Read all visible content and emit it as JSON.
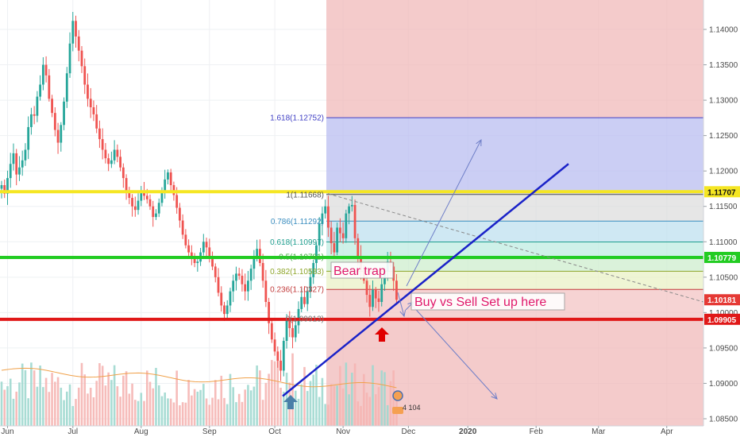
{
  "chart_data": {
    "type": "candlestick",
    "y_axis": {
      "range": [
        1.085,
        1.145
      ],
      "ticks": [
        "1.14000",
        "1.13500",
        "1.13000",
        "1.12500",
        "1.12000",
        "1.11500",
        "1.11000",
        "1.10500",
        "1.10000",
        "1.09500",
        "1.09000",
        "1.08500"
      ],
      "tick_values": [
        1.14,
        1.135,
        1.13,
        1.125,
        1.12,
        1.115,
        1.11,
        1.105,
        1.1,
        1.095,
        1.09,
        1.085
      ]
    },
    "x_axis": {
      "labels": [
        "Jun",
        "Jul",
        "Aug",
        "Sep",
        "Oct",
        "Nov",
        "Dec",
        "2020",
        "Feb",
        "Mar",
        "Apr"
      ],
      "label_bar_index": [
        2,
        24,
        47,
        70,
        92,
        115,
        137,
        157,
        180,
        201,
        224
      ]
    },
    "bars_count": 134,
    "closes": [
      1.118,
      1.1168,
      1.119,
      1.121,
      1.1225,
      1.1195,
      1.1205,
      1.1215,
      1.123,
      1.1262,
      1.128,
      1.1278,
      1.1305,
      1.1322,
      1.135,
      1.1335,
      1.1302,
      1.1282,
      1.1258,
      1.124,
      1.1265,
      1.1298,
      1.1338,
      1.138,
      1.1412,
      1.139,
      1.137,
      1.1348,
      1.1322,
      1.1302,
      1.129,
      1.128,
      1.126,
      1.1245,
      1.123,
      1.1218,
      1.121,
      1.1215,
      1.123,
      1.122,
      1.1205,
      1.119,
      1.117,
      1.1162,
      1.115,
      1.1145,
      1.1158,
      1.117,
      1.1165,
      1.116,
      1.115,
      1.1135,
      1.114,
      1.1155,
      1.1172,
      1.1188,
      1.1198,
      1.118,
      1.1166,
      1.1148,
      1.113,
      1.111,
      1.1095,
      1.1085,
      1.1078,
      1.107,
      1.1072,
      1.1085,
      1.11,
      1.1092,
      1.108,
      1.1065,
      1.105,
      1.1028,
      1.101,
      1.0998,
      1.101,
      1.103,
      1.1045,
      1.1055,
      1.1052,
      1.104,
      1.103,
      1.1045,
      1.1062,
      1.1078,
      1.109,
      1.107,
      1.1045,
      1.1015,
      1.0985,
      1.0962,
      1.0945,
      1.0932,
      1.0918,
      1.096,
      1.0992,
      1.0978,
      1.0965,
      1.0982,
      1.1005,
      1.1022,
      1.1012,
      1.103,
      1.105,
      1.107,
      1.1095,
      1.1125,
      1.114,
      1.115,
      1.112,
      1.1098,
      1.1085,
      1.112,
      1.1112,
      1.1105,
      1.114,
      1.115,
      1.1152,
      1.1105,
      1.108,
      1.106,
      1.1045,
      1.1025,
      1.1008,
      1.1032,
      1.102,
      1.1015,
      1.104,
      1.1058,
      1.1072,
      1.1065,
      1.1045,
      1.1018
    ],
    "volume_note": "volume histogram at bottom with orange moving average line",
    "levels": [
      {
        "name": "resistance",
        "value": 1.11707,
        "label": "1.11707",
        "color": "#f5e623"
      },
      {
        "name": "mid",
        "value": 1.10779,
        "label": "1.10779",
        "color": "#22cc22"
      },
      {
        "name": "support",
        "value": 1.09905,
        "label": "1.09905",
        "color": "#e01818"
      },
      {
        "name": "last",
        "value": 1.10181,
        "label": "1.10181",
        "color": "#e53935"
      }
    ],
    "fib_levels": [
      {
        "ratio": "1.618",
        "label": "1.618(1.12752)",
        "value": 1.12752,
        "color": "#3f3fc4"
      },
      {
        "ratio": "1",
        "label": "1(1.11668)",
        "value": 1.11668,
        "color": "#555555"
      },
      {
        "ratio": "0.786",
        "label": "0.786(1.11292)",
        "value": 1.11292,
        "color": "#3a8dbf"
      },
      {
        "ratio": "0.618",
        "label": "0.618(1.10997)",
        "value": 1.10997,
        "color": "#1e9e8e"
      },
      {
        "ratio": "0.5",
        "label": "0.5(1.10791)",
        "value": 1.10791,
        "color": "#3fae3f"
      },
      {
        "ratio": "0.382",
        "label": "0.382(1.10583)",
        "value": 1.10583,
        "color": "#8ea52a"
      },
      {
        "ratio": "0.236",
        "label": "0.236(1.10327)",
        "value": 1.10327,
        "color": "#c23b3b"
      },
      {
        "ratio": "0",
        "label": "0(1.09913)",
        "value": 1.09913,
        "color": "#777777"
      }
    ],
    "annotations": {
      "bear_trap": "Bear trap",
      "setup": "Buy vs Sell Set up here",
      "badge_count": "4 104"
    },
    "colors": {
      "up": "#26a69a",
      "down": "#ef5350",
      "trendline": "#1a22c8",
      "arrow_up_blue": "#4a7fa8",
      "arrow_up_red": "#e00000"
    }
  }
}
